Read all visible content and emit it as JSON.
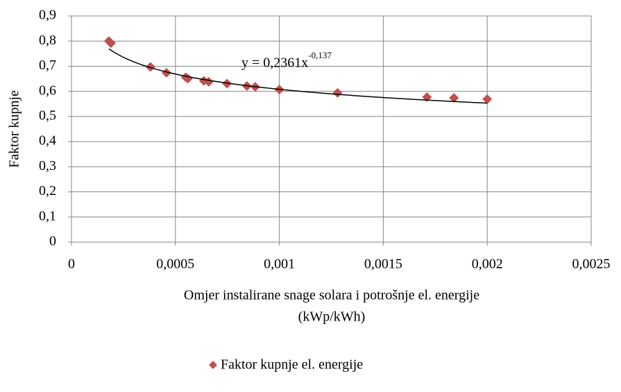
{
  "chart_data": {
    "type": "scatter",
    "ylabel": "Faktor kupnje",
    "xlabel": [
      "Omjer instalirane snage solara i potrošnje el. energije",
      "(kWp/kWh)"
    ],
    "series": [
      {
        "name": "Faktor kupnje el. energije",
        "color": "#c0504d",
        "x": [
          0.00018,
          0.00019,
          0.00038,
          0.000457,
          0.00055,
          0.00056,
          0.000637,
          0.00066,
          0.000748,
          0.000844,
          0.000884,
          0.001,
          0.00128,
          0.00171,
          0.00184,
          0.002
        ],
        "values": [
          0.8,
          0.792,
          0.697,
          0.674,
          0.656,
          0.651,
          0.642,
          0.638,
          0.631,
          0.621,
          0.618,
          0.607,
          0.594,
          0.577,
          0.574,
          0.569
        ]
      }
    ],
    "trendline": {
      "type": "power",
      "coefficient": 0.2361,
      "power": -0.137,
      "equation": "y = 0,2361x",
      "exponent": "-0,137"
    },
    "xlim": [
      0,
      0.0025
    ],
    "xticks": [
      0,
      {
        "value": 0.0005,
        "label": "0,0005"
      },
      {
        "value": 0.001,
        "label": "0,001"
      },
      {
        "value": 0.0015,
        "label": "0,0015"
      },
      {
        "value": 0.002,
        "label": "0,002"
      },
      {
        "value": 0.0025,
        "label": "0,0025"
      }
    ],
    "ylim": [
      0,
      0.9
    ],
    "yticks": [
      0,
      {
        "value": 0.1,
        "label": "0,1"
      },
      {
        "value": 0.2,
        "label": "0,2"
      },
      {
        "value": 0.3,
        "label": "0,3"
      },
      {
        "value": 0.4,
        "label": "0,4"
      },
      {
        "value": 0.5,
        "label": "0,5"
      },
      {
        "value": 0.6,
        "label": "0,6"
      },
      {
        "value": 0.7,
        "label": "0,7"
      },
      {
        "value": 0.8,
        "label": "0,8"
      },
      {
        "value": 0.9,
        "label": "0,9"
      }
    ],
    "grid": true,
    "legend": "bottom"
  }
}
